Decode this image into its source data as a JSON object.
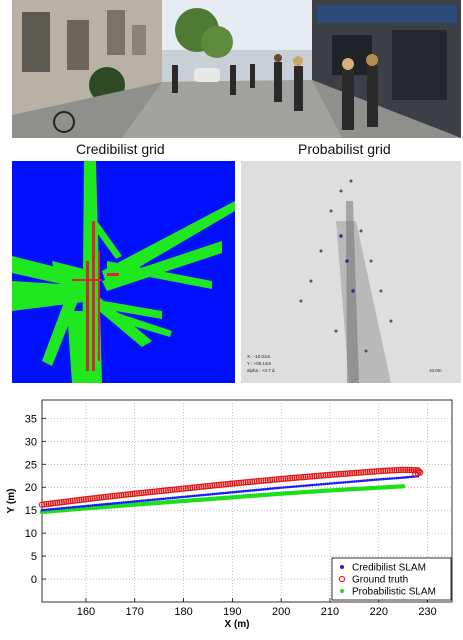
{
  "figure": {
    "caption_left": "Credibilist grid",
    "caption_right": "Probabilist grid",
    "photo_icon": "street-scene-photo",
    "grid_left_colors": {
      "background": "#0010ff",
      "free": "#1fe81f",
      "occupied": "#e0203a"
    },
    "grid_right_inset_lines": [
      "X : -10.01m",
      "Y : +06.14m",
      "alpha : +3.7 d."
    ],
    "grid_right_scale": "10.0m"
  },
  "chart_data": {
    "type": "line",
    "title": "",
    "xlabel": "X (m)",
    "ylabel": "Y (m)",
    "xlim": [
      151,
      235
    ],
    "ylim": [
      -5,
      39
    ],
    "xticks": [
      160,
      170,
      180,
      190,
      200,
      210,
      220,
      230
    ],
    "yticks": [
      0,
      5,
      10,
      15,
      20,
      25,
      30,
      35
    ],
    "grid": true,
    "legend_position": "bottom-right",
    "series": [
      {
        "name": "Credibilist SLAM",
        "color": "#1a1aff",
        "marker": "dot",
        "x": [
          151,
          160,
          170,
          180,
          190,
          200,
          210,
          220,
          225,
          228
        ],
        "y": [
          15.0,
          15.9,
          16.9,
          17.9,
          18.9,
          19.9,
          20.8,
          21.7,
          22.1,
          22.4
        ]
      },
      {
        "name": "Ground truth",
        "color": "#e01a1a",
        "marker": "circle",
        "x": [
          151,
          160,
          170,
          180,
          190,
          200,
          210,
          220,
          225,
          228,
          228.5,
          227.5
        ],
        "y": [
          16.2,
          17.4,
          18.6,
          19.7,
          20.8,
          21.8,
          22.7,
          23.5,
          23.8,
          23.7,
          23.2,
          22.9
        ]
      },
      {
        "name": "Probabilistic SLAM",
        "color": "#1ae01a",
        "marker": "dot",
        "x": [
          151,
          160,
          170,
          180,
          190,
          200,
          210,
          220,
          225
        ],
        "y": [
          14.6,
          15.4,
          16.2,
          17.0,
          17.8,
          18.6,
          19.3,
          19.9,
          20.2
        ]
      }
    ]
  }
}
